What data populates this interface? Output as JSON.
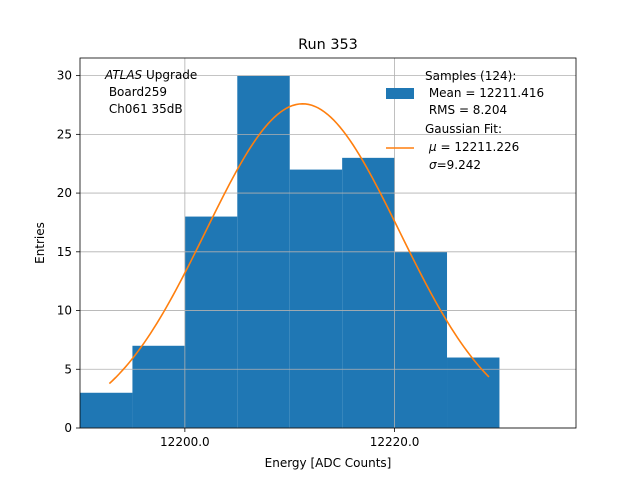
{
  "chart_data": {
    "type": "bar",
    "title": "Run 353",
    "xlabel": "Energy [ADC Counts]",
    "ylabel": "Entries",
    "xlim": [
      12190.0,
      12237.3
    ],
    "ylim": [
      0,
      31.5
    ],
    "grid": true,
    "xticks": [
      12200.0,
      12220.0
    ],
    "xtick_labels": [
      "12200.0",
      "12220.0"
    ],
    "yticks": [
      0,
      5,
      10,
      15,
      20,
      25,
      30
    ],
    "ytick_labels": [
      "0",
      "5",
      "10",
      "15",
      "20",
      "25",
      "30"
    ],
    "bin_edges": [
      12190,
      12195,
      12200,
      12205,
      12210,
      12215,
      12220,
      12225,
      12230
    ],
    "counts": [
      3,
      7,
      18,
      30,
      22,
      23,
      15,
      6
    ],
    "hist_color": "#1f77b4",
    "fit": {
      "mu": 12211.226,
      "sigma": 9.242,
      "amplitude": 27.6,
      "x_range": [
        12192.8,
        12229.0
      ],
      "color": "#ff7f0e"
    },
    "annotation": {
      "italic_part": "ATLAS",
      "line1_rest": " Upgrade",
      "line2": " Board259",
      "line3": " Ch061 35dB"
    },
    "legend": {
      "position": "top-right",
      "samples": {
        "line1": "Samples (124):",
        "line2": " Mean = 12211.416",
        "line3": " RMS = 8.204"
      },
      "fit": {
        "line1": "Gaussian Fit:",
        "mu_symbol": "μ",
        "mu_text": " = 12211.226",
        "sigma_symbol": "σ",
        "sigma_text": "=9.242"
      }
    }
  }
}
